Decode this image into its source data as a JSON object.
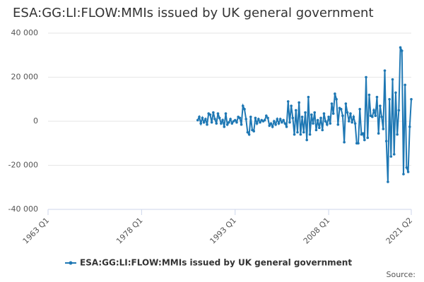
{
  "chart_data": {
    "type": "line",
    "title": "ESA:GG:LI:FLOW:MMIs issued by UK general government",
    "source": "Source:",
    "xlim": [
      1963,
      2021.25
    ],
    "xticks": [
      {
        "value": 1963,
        "label": "1963 Q1"
      },
      {
        "value": 1978,
        "label": "1978 Q1"
      },
      {
        "value": 1993,
        "label": "1993 Q1"
      },
      {
        "value": 2008,
        "label": "2008 Q1"
      },
      {
        "value": 2021.25,
        "label": "2021 Q2"
      }
    ],
    "ylim": [
      -40000,
      40000
    ],
    "yticks": [
      {
        "value": -40000,
        "label": "-40 000"
      },
      {
        "value": -20000,
        "label": "-20 000"
      },
      0,
      {
        "value": 20000,
        "label": "20 000"
      },
      {
        "value": 40000,
        "label": "40 000"
      }
    ],
    "grid": true,
    "legend": "bottom",
    "series": [
      {
        "name": "ESA:GG:LI:FLOW:MMIs issued by UK general government",
        "color": "#1f78b4",
        "x": [
          1987,
          1987.25,
          1987.5,
          1987.75,
          1988,
          1988.25,
          1988.5,
          1988.75,
          1989,
          1989.25,
          1989.5,
          1989.75,
          1990,
          1990.25,
          1990.5,
          1990.75,
          1991,
          1991.25,
          1991.5,
          1991.75,
          1992,
          1992.25,
          1992.5,
          1992.75,
          1993,
          1993.25,
          1993.5,
          1993.75,
          1994,
          1994.25,
          1994.5,
          1994.75,
          1995,
          1995.25,
          1995.5,
          1995.75,
          1996,
          1996.25,
          1996.5,
          1996.75,
          1997,
          1997.25,
          1997.5,
          1997.75,
          1998,
          1998.25,
          1998.5,
          1998.75,
          1999,
          1999.25,
          1999.5,
          1999.75,
          2000,
          2000.25,
          2000.5,
          2000.75,
          2001,
          2001.25,
          2001.5,
          2001.75,
          2002,
          2002.25,
          2002.5,
          2002.75,
          2003,
          2003.25,
          2003.5,
          2003.75,
          2004,
          2004.25,
          2004.5,
          2004.75,
          2005,
          2005.25,
          2005.5,
          2005.75,
          2006,
          2006.25,
          2006.5,
          2006.75,
          2007,
          2007.25,
          2007.5,
          2007.75,
          2008,
          2008.25,
          2008.5,
          2008.75,
          2009,
          2009.25,
          2009.5,
          2009.75,
          2010,
          2010.25,
          2010.5,
          2010.75,
          2011,
          2011.25,
          2011.5,
          2011.75,
          2012,
          2012.25,
          2012.5,
          2012.75,
          2013,
          2013.25,
          2013.5,
          2013.75,
          2014,
          2014.25,
          2014.5,
          2014.75,
          2015,
          2015.25,
          2015.5,
          2015.75,
          2016,
          2016.25,
          2016.5,
          2016.75,
          2017,
          2017.25,
          2017.5,
          2017.75,
          2018,
          2018.25,
          2018.5,
          2018.75,
          2019,
          2019.25,
          2019.5,
          2019.75,
          2020,
          2020.25,
          2020.5,
          2020.75,
          2021,
          2021.25
        ],
        "values": [
          500,
          2000,
          -1000,
          1500,
          -500,
          1000,
          -1500,
          3500,
          3000,
          -500,
          4000,
          1000,
          -1000,
          3500,
          1500,
          -1000,
          500,
          -2500,
          3500,
          -1500,
          -500,
          1000,
          -1000,
          0,
          500,
          -500,
          2000,
          1500,
          -1500,
          7000,
          5500,
          1000,
          -5000,
          -6000,
          2000,
          -4000,
          -4500,
          1500,
          -1000,
          1000,
          -500,
          500,
          0,
          500,
          2500,
          1500,
          -2000,
          -1000,
          -2500,
          0,
          -1500,
          1000,
          -1000,
          1000,
          -500,
          500,
          -1000,
          -2500,
          9000,
          -500,
          7000,
          1500,
          -6000,
          5000,
          -5000,
          8500,
          -6000,
          2000,
          -5000,
          4000,
          -8500,
          11000,
          -6000,
          3000,
          -1000,
          4000,
          -4000,
          500,
          -3000,
          1500,
          -4000,
          3500,
          0,
          -1500,
          2000,
          -1000,
          8000,
          3500,
          12500,
          10000,
          -1500,
          6000,
          5500,
          2500,
          -9500,
          8000,
          4000,
          0,
          3500,
          -500,
          2000,
          -1000,
          -10000,
          -10000,
          5500,
          -6000,
          -5500,
          -8500,
          20000,
          -7500,
          12000,
          2500,
          2000,
          5000,
          2500,
          11000,
          -5500,
          7000,
          2000,
          -3500,
          23000,
          -9000,
          -27500,
          10000,
          -16000,
          19000,
          -15000,
          13000,
          -6000,
          5000,
          33500,
          32000,
          -24000,
          16500,
          -21000,
          -23000,
          -2500,
          10000
        ]
      }
    ]
  }
}
